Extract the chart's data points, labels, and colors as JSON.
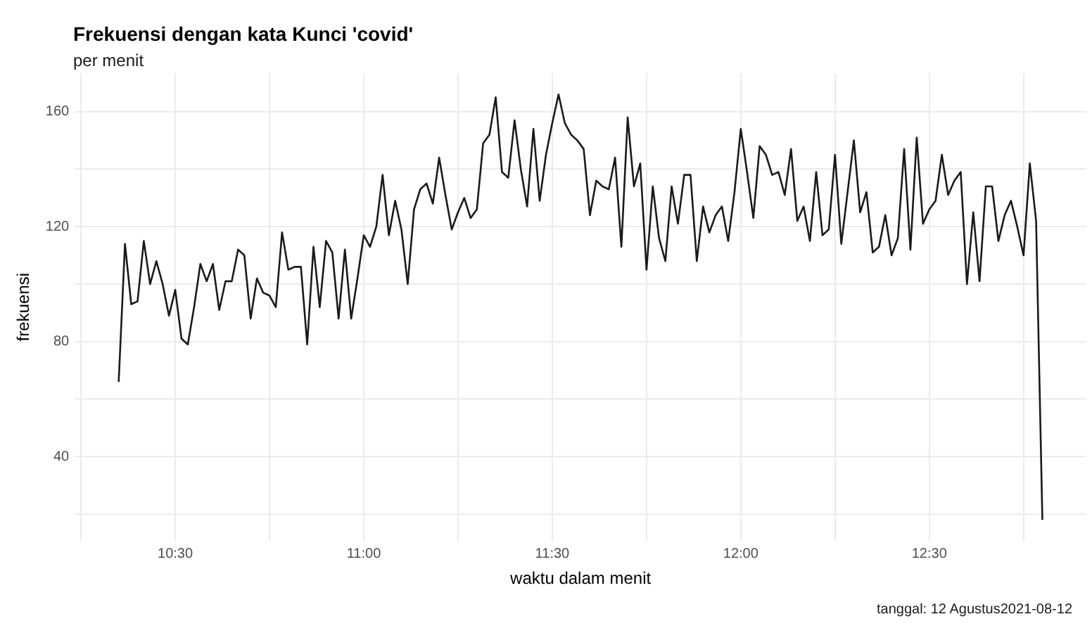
{
  "chart_data": {
    "type": "line",
    "title": "Frekuensi dengan kata Kunci 'covid'",
    "subtitle": "per menit",
    "xlabel": "waktu dalam menit",
    "ylabel": "frekuensi",
    "annotations": [
      "tanggal: 12 Agustus2021-08-12"
    ],
    "x": [
      "2021-08-12T10:21",
      "2021-08-12T10:22",
      "2021-08-12T10:23",
      "2021-08-12T10:24",
      "2021-08-12T10:25",
      "2021-08-12T10:26",
      "2021-08-12T10:27",
      "2021-08-12T10:28",
      "2021-08-12T10:29",
      "2021-08-12T10:30",
      "2021-08-12T10:31",
      "2021-08-12T10:32",
      "2021-08-12T10:33",
      "2021-08-12T10:34",
      "2021-08-12T10:35",
      "2021-08-12T10:36",
      "2021-08-12T10:37",
      "2021-08-12T10:38",
      "2021-08-12T10:39",
      "2021-08-12T10:40",
      "2021-08-12T10:41",
      "2021-08-12T10:42",
      "2021-08-12T10:43",
      "2021-08-12T10:44",
      "2021-08-12T10:45",
      "2021-08-12T10:46",
      "2021-08-12T10:47",
      "2021-08-12T10:48",
      "2021-08-12T10:49",
      "2021-08-12T10:50",
      "2021-08-12T10:51",
      "2021-08-12T10:52",
      "2021-08-12T10:53",
      "2021-08-12T10:54",
      "2021-08-12T10:55",
      "2021-08-12T10:56",
      "2021-08-12T10:57",
      "2021-08-12T10:58",
      "2021-08-12T10:59",
      "2021-08-12T11:00",
      "2021-08-12T11:01",
      "2021-08-12T11:02",
      "2021-08-12T11:03",
      "2021-08-12T11:04",
      "2021-08-12T11:05",
      "2021-08-12T11:06",
      "2021-08-12T11:07",
      "2021-08-12T11:08",
      "2021-08-12T11:09",
      "2021-08-12T11:10",
      "2021-08-12T11:11",
      "2021-08-12T11:12",
      "2021-08-12T11:13",
      "2021-08-12T11:14",
      "2021-08-12T11:15",
      "2021-08-12T11:16",
      "2021-08-12T11:17",
      "2021-08-12T11:18",
      "2021-08-12T11:19",
      "2021-08-12T11:20",
      "2021-08-12T11:21",
      "2021-08-12T11:22",
      "2021-08-12T11:23",
      "2021-08-12T11:24",
      "2021-08-12T11:25",
      "2021-08-12T11:26",
      "2021-08-12T11:27",
      "2021-08-12T11:28",
      "2021-08-12T11:29",
      "2021-08-12T11:30",
      "2021-08-12T11:31",
      "2021-08-12T11:32",
      "2021-08-12T11:33",
      "2021-08-12T11:34",
      "2021-08-12T11:35",
      "2021-08-12T11:36",
      "2021-08-12T11:37",
      "2021-08-12T11:38",
      "2021-08-12T11:39",
      "2021-08-12T11:40",
      "2021-08-12T11:41",
      "2021-08-12T11:42",
      "2021-08-12T11:43",
      "2021-08-12T11:44",
      "2021-08-12T11:45",
      "2021-08-12T11:46",
      "2021-08-12T11:47",
      "2021-08-12T11:48",
      "2021-08-12T11:49",
      "2021-08-12T11:50",
      "2021-08-12T11:51",
      "2021-08-12T11:52",
      "2021-08-12T11:53",
      "2021-08-12T11:54",
      "2021-08-12T11:55",
      "2021-08-12T11:56",
      "2021-08-12T11:57",
      "2021-08-12T11:58",
      "2021-08-12T11:59",
      "2021-08-12T12:00",
      "2021-08-12T12:01",
      "2021-08-12T12:02",
      "2021-08-12T12:03",
      "2021-08-12T12:04",
      "2021-08-12T12:05",
      "2021-08-12T12:06",
      "2021-08-12T12:07",
      "2021-08-12T12:08",
      "2021-08-12T12:09",
      "2021-08-12T12:10",
      "2021-08-12T12:11",
      "2021-08-12T12:12",
      "2021-08-12T12:13",
      "2021-08-12T12:14",
      "2021-08-12T12:15",
      "2021-08-12T12:16",
      "2021-08-12T12:17",
      "2021-08-12T12:18",
      "2021-08-12T12:19",
      "2021-08-12T12:20",
      "2021-08-12T12:21",
      "2021-08-12T12:22",
      "2021-08-12T12:23",
      "2021-08-12T12:24",
      "2021-08-12T12:25",
      "2021-08-12T12:26",
      "2021-08-12T12:27",
      "2021-08-12T12:28",
      "2021-08-12T12:29",
      "2021-08-12T12:30",
      "2021-08-12T12:31",
      "2021-08-12T12:32",
      "2021-08-12T12:33",
      "2021-08-12T12:34",
      "2021-08-12T12:35",
      "2021-08-12T12:36",
      "2021-08-12T12:37",
      "2021-08-12T12:38",
      "2021-08-12T12:39",
      "2021-08-12T12:40",
      "2021-08-12T12:41",
      "2021-08-12T12:42",
      "2021-08-12T12:43",
      "2021-08-12T12:44",
      "2021-08-12T12:45",
      "2021-08-12T12:46",
      "2021-08-12T12:47",
      "2021-08-12T12:48"
    ],
    "series": [
      {
        "color": "#1a1a1a",
        "values": [
          66,
          114,
          93,
          94,
          115,
          100,
          108,
          100,
          89,
          98,
          81,
          79,
          92,
          107,
          101,
          107,
          91,
          101,
          101,
          112,
          110,
          88,
          102,
          97,
          96,
          92,
          118,
          105,
          106,
          106,
          79,
          113,
          92,
          115,
          111,
          88,
          112,
          88,
          102,
          117,
          113,
          120,
          138,
          117,
          129,
          119,
          100,
          126,
          133,
          135,
          128,
          144,
          131,
          119,
          125,
          130,
          123,
          126,
          149,
          152,
          165,
          139,
          137,
          157,
          140,
          127,
          154,
          129,
          145,
          156,
          166,
          156,
          152,
          150,
          147,
          124,
          136,
          134,
          133,
          144,
          113,
          158,
          134,
          142,
          105,
          134,
          116,
          108,
          134,
          121,
          138,
          138,
          108,
          127,
          118,
          124,
          127,
          115,
          132,
          154,
          139,
          123,
          148,
          145,
          138,
          139,
          131,
          147,
          122,
          127,
          115,
          139,
          117,
          119,
          145,
          114,
          132,
          150,
          125,
          132,
          111,
          113,
          124,
          110,
          116,
          147,
          112,
          151,
          121,
          126,
          129,
          145,
          131,
          136,
          139,
          100,
          125,
          101,
          134,
          134,
          115,
          124,
          129,
          120,
          110,
          142,
          122,
          18
        ]
      }
    ],
    "xlim": [
      "2021-08-12T10:14",
      "2021-08-12T12:55"
    ],
    "xticks": [
      {
        "value": "2021-08-12T10:15",
        "label": null
      },
      {
        "value": "2021-08-12T10:30",
        "label": "10:30"
      },
      {
        "value": "2021-08-12T10:45",
        "label": null
      },
      {
        "value": "2021-08-12T11:00",
        "label": "11:00"
      },
      {
        "value": "2021-08-12T11:15",
        "label": null
      },
      {
        "value": "2021-08-12T11:30",
        "label": "11:30"
      },
      {
        "value": "2021-08-12T11:45",
        "label": null
      },
      {
        "value": "2021-08-12T12:00",
        "label": "12:00"
      },
      {
        "value": "2021-08-12T12:15",
        "label": null
      },
      {
        "value": "2021-08-12T12:30",
        "label": "12:30"
      },
      {
        "value": "2021-08-12T12:45",
        "label": null
      }
    ],
    "ylim": [
      10.6,
      173.4
    ],
    "yticks": [
      {
        "value": 20,
        "label": null
      },
      40,
      {
        "value": 60,
        "label": null
      },
      80,
      {
        "value": 100,
        "label": null
      },
      120,
      {
        "value": 140,
        "label": null
      },
      160
    ],
    "grid": true
  }
}
